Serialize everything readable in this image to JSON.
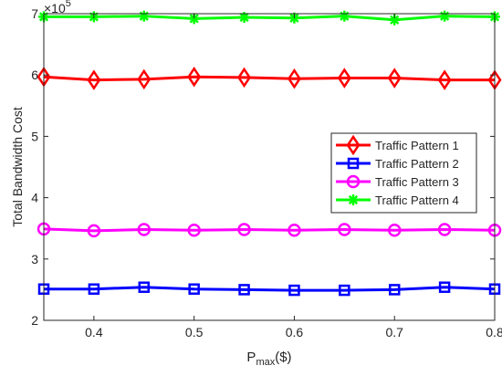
{
  "chart_data": {
    "type": "line",
    "xlabel_base": "P",
    "xlabel_sub": "max",
    "xlabel_unit": "($)",
    "ylabel": "Total Bandwidth Cost",
    "y_multiplier_base": "×10",
    "y_multiplier_exp": "5",
    "x": [
      0.35,
      0.4,
      0.45,
      0.5,
      0.55,
      0.6,
      0.65,
      0.7,
      0.75,
      0.8
    ],
    "xlim": [
      0.35,
      0.8
    ],
    "ylim": [
      2,
      7
    ],
    "xticks": [
      0.4,
      0.5,
      0.6,
      0.7,
      0.8
    ],
    "yticks": [
      2,
      3,
      4,
      5,
      6,
      7
    ],
    "legend_position": "right-middle",
    "series": [
      {
        "name": "Traffic Pattern 1",
        "color": "#ff0000",
        "marker": "diamond",
        "values": [
          5.97,
          5.92,
          5.93,
          5.97,
          5.96,
          5.94,
          5.95,
          5.95,
          5.92,
          5.92
        ]
      },
      {
        "name": "Traffic Pattern 2",
        "color": "#0000ff",
        "marker": "square",
        "values": [
          2.51,
          2.51,
          2.54,
          2.51,
          2.5,
          2.49,
          2.49,
          2.5,
          2.54,
          2.51
        ]
      },
      {
        "name": "Traffic Pattern 3",
        "color": "#ff00ff",
        "marker": "circle",
        "values": [
          3.49,
          3.46,
          3.48,
          3.47,
          3.48,
          3.47,
          3.48,
          3.47,
          3.48,
          3.47
        ]
      },
      {
        "name": "Traffic Pattern 4",
        "color": "#00ff00",
        "marker": "asterisk",
        "values": [
          6.95,
          6.95,
          6.96,
          6.92,
          6.94,
          6.93,
          6.96,
          6.9,
          6.96,
          6.95
        ]
      }
    ]
  }
}
